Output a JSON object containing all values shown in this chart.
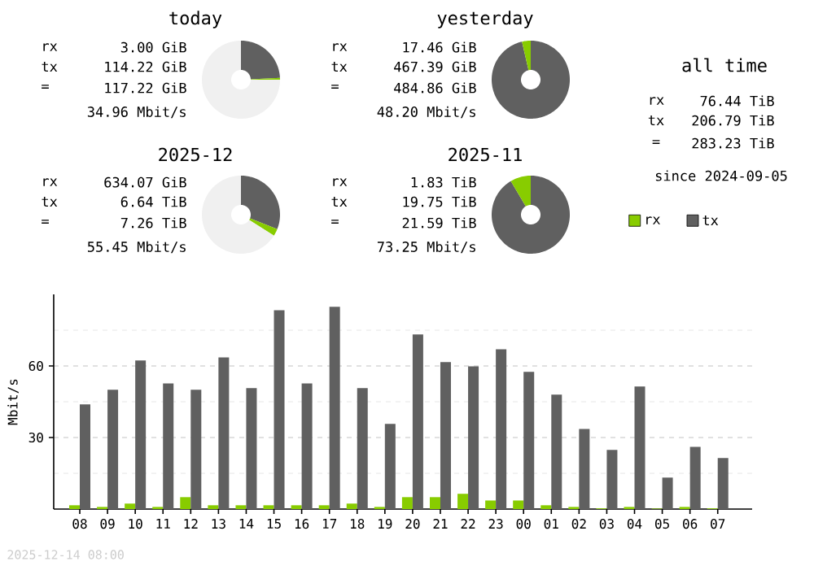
{
  "chart_data": [
    {
      "type": "donut",
      "title": "today",
      "categories": [
        null,
        null,
        null
      ],
      "values": [
        24.3,
        0.7,
        75
      ],
      "colors": [
        "#606060",
        "#88cc00",
        "#f0f0f0"
      ],
      "annotations": [
        "rx",
        "3.00 GiB",
        "tx",
        "114.22 GiB",
        "=",
        "117.22 GiB",
        "34.96 Mbit/s"
      ]
    },
    {
      "type": "donut",
      "title": "yesterday",
      "categories": [
        null,
        null
      ],
      "values": [
        96.4,
        3.6
      ],
      "colors": [
        "#606060",
        "#88cc00"
      ],
      "annotations": [
        "rx",
        "17.46 GiB",
        "tx",
        "467.39 GiB",
        "=",
        "484.86 GiB",
        "48.20 Mbit/s"
      ]
    },
    {
      "type": "other",
      "title": "all time",
      "annotations": [
        "rx",
        "76.44 TiB",
        "tx",
        "206.79 TiB",
        "=",
        "283.23 TiB",
        "since 2024-09-05"
      ]
    },
    {
      "type": "donut",
      "title": "2025-12",
      "categories": [
        null,
        null,
        null
      ],
      "values": [
        31,
        3,
        66
      ],
      "colors": [
        "#606060",
        "#88cc00",
        "#f0f0f0"
      ],
      "annotations": [
        "rx",
        "634.07 GiB",
        "tx",
        "6.64 TiB",
        "=",
        "7.26 TiB",
        "55.45 Mbit/s"
      ]
    },
    {
      "type": "donut",
      "title": "2025-11",
      "categories": [
        null,
        null
      ],
      "values": [
        91.5,
        8.5
      ],
      "colors": [
        "#606060",
        "#88cc00"
      ],
      "annotations": [
        "rx",
        "1.83 TiB",
        "tx",
        "19.75 TiB",
        "=",
        "21.59 TiB",
        "73.25 Mbit/s"
      ]
    },
    {
      "type": "bar",
      "ylabel": "Mbit/s",
      "categories": [
        "08",
        "09",
        "10",
        "11",
        "12",
        "13",
        "14",
        "15",
        "16",
        "17",
        "18",
        "19",
        "20",
        "21",
        "22",
        "23",
        "00",
        "01",
        "02",
        "03",
        "04",
        "05",
        "06",
        "07"
      ],
      "series": [
        {
          "name": "rx",
          "color": "#88cc00",
          "values": [
            1.6,
            0.9,
            2.3,
            0.9,
            5,
            1.6,
            1.6,
            1.6,
            1.6,
            1.6,
            2.3,
            0.9,
            5,
            5,
            6.4,
            3.6,
            3.6,
            1.6,
            0.9,
            0.3,
            0.9,
            0.2,
            0.9,
            0.3
          ]
        },
        {
          "name": "tx",
          "color": "#606060",
          "values": [
            43.9,
            50,
            62.3,
            52.7,
            50,
            63.6,
            50.7,
            83.4,
            52.7,
            84.8,
            50.7,
            35.7,
            73.2,
            61.6,
            59.8,
            67,
            57.5,
            48,
            33.6,
            24.8,
            51.4,
            13.2,
            26.1,
            21.4
          ]
        }
      ],
      "ylim": [
        0,
        90
      ],
      "yticks": [
        {
          "value": 15,
          "label": null
        },
        30,
        {
          "value": 45,
          "label": null
        },
        60,
        {
          "value": 75,
          "label": null
        }
      ],
      "grid": "y",
      "legend": "top right",
      "annotations": [
        "2025-12-14 08:00"
      ]
    }
  ]
}
